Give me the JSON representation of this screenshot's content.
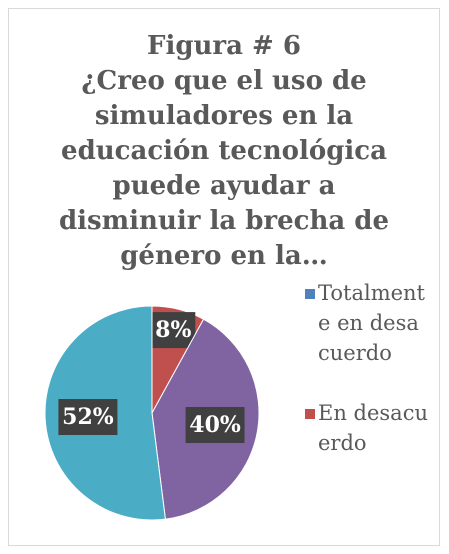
{
  "chart_data": {
    "type": "pie",
    "title": [
      "Figura # 6",
      "¿Creo que el uso de",
      "simuladores en la",
      "educación tecnológica",
      "puede ayudar a",
      "disminuir la brecha de",
      "género en la…"
    ],
    "categories": [
      "Totalmente en desacuerdo",
      "En desacuerdo",
      null,
      null
    ],
    "values": [
      0,
      8,
      40,
      52
    ],
    "value_labels": [
      null,
      "8%",
      "40%",
      "52%"
    ],
    "colors": [
      "#4f81bd",
      "#c0504d",
      "#8064a2",
      "#4bacc6"
    ],
    "legend": "right"
  }
}
